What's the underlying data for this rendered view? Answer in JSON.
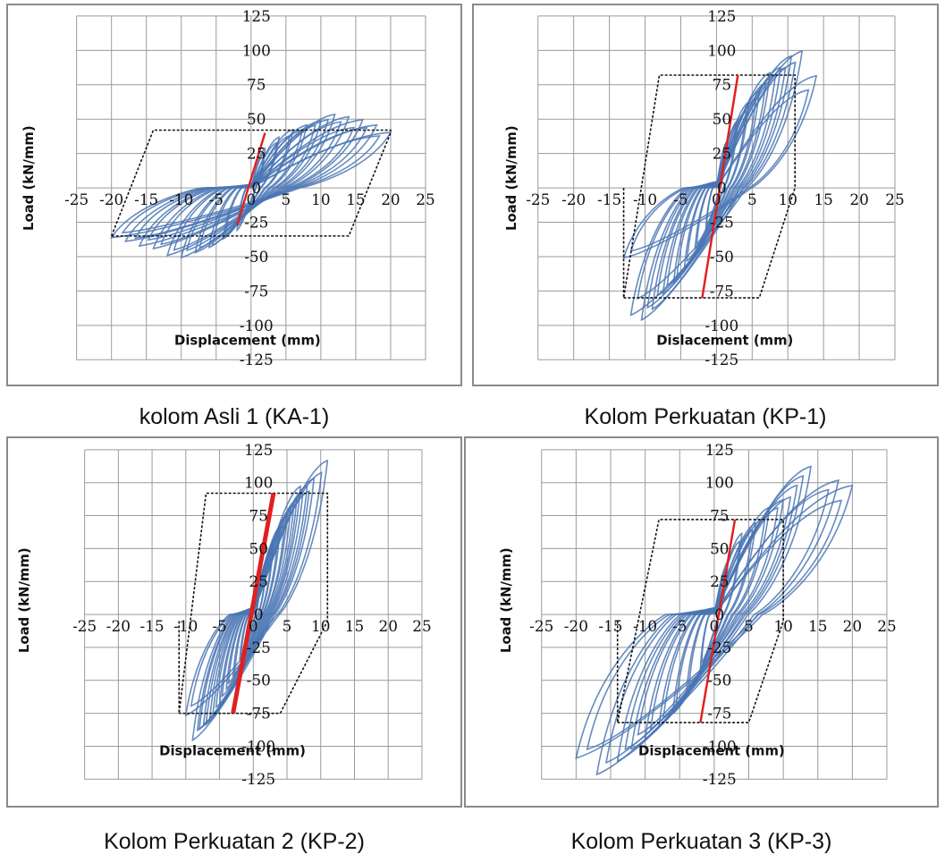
{
  "colors": {
    "hysteresis": "#4a76b4",
    "initial_stiffness": "#e02020",
    "bilinear": "#111111",
    "grid": "#9a9a9a"
  },
  "captions": [
    "kolom Asli 1 (KA-1)",
    "Kolom Perkuatan (KP-1)",
    "Kolom Perkuatan 2 (KP-2)",
    "Kolom Perkuatan 3 (KP-3)"
  ],
  "chart_data": [
    {
      "type": "line",
      "caption": "kolom Asli 1 (KA-1)",
      "xlabel": "Displacement (mm)",
      "ylabel": "Load (kN/mm)",
      "xticks": [
        "-25",
        "-20",
        "-15",
        "-10",
        "-5",
        "0",
        "5",
        "10",
        "15",
        "20",
        "25"
      ],
      "yticks": [
        "125",
        "100",
        "75",
        "50",
        "25",
        "0",
        "-25",
        "-50",
        "-75",
        "-100",
        "-125"
      ],
      "xlim": [
        -25,
        25
      ],
      "ylim": [
        -125,
        125
      ],
      "grid": true,
      "peaks": {
        "pos_disp": [
          2,
          4,
          6,
          8,
          10,
          12,
          14,
          16,
          18,
          20
        ],
        "pos_load": [
          28,
          36,
          42,
          46,
          50,
          55,
          52,
          49,
          46,
          40
        ],
        "neg_disp": [
          -2,
          -4,
          -6,
          -8,
          -10,
          -12,
          -14,
          -16,
          -18,
          -20
        ],
        "neg_load": [
          -30,
          -38,
          -44,
          -48,
          -50,
          -48,
          -45,
          -42,
          -40,
          -36
        ]
      },
      "stiffness_line": {
        "x": [
          -2,
          2
        ],
        "y": [
          -27,
          40
        ]
      },
      "bilinear": {
        "x": [
          -20,
          -14,
          20,
          20,
          14,
          -20,
          -20
        ],
        "y": [
          -35,
          42,
          42,
          40,
          -35,
          -35,
          -35
        ]
      }
    },
    {
      "type": "line",
      "caption": "Kolom Perkuatan (KP-1)",
      "xlabel": "Dislacement (mm)",
      "ylabel": "Load (kN/mm)",
      "xticks": [
        "-25",
        "-20",
        "-15",
        "-10",
        "-5",
        "0",
        "5",
        "10",
        "15",
        "20",
        "25"
      ],
      "yticks": [
        "125",
        "100",
        "75",
        "50",
        "25",
        "0",
        "-25",
        "-50",
        "-75",
        "-100",
        "-125"
      ],
      "xlim": [
        -25,
        25
      ],
      "ylim": [
        -125,
        125
      ],
      "grid": true,
      "peaks": {
        "pos_disp": [
          1.5,
          3,
          4.5,
          6,
          7.5,
          9,
          10.5,
          12,
          14
        ],
        "pos_load": [
          35,
          50,
          62,
          72,
          82,
          90,
          95,
          100,
          80
        ],
        "neg_disp": [
          -1.5,
          -3,
          -4.5,
          -6,
          -7.5,
          -9,
          -10.5,
          -12,
          -13
        ],
        "neg_load": [
          -30,
          -45,
          -58,
          -68,
          -78,
          -88,
          -95,
          -90,
          -50
        ]
      },
      "stiffness_line": {
        "x": [
          -2,
          3
        ],
        "y": [
          -80,
          82
        ]
      },
      "bilinear": {
        "x": [
          -13,
          -13,
          -8,
          11,
          11,
          6,
          -13
        ],
        "y": [
          0,
          -80,
          82,
          82,
          0,
          -80,
          -80
        ]
      }
    },
    {
      "type": "line",
      "caption": "Kolom Perkuatan 2 (KP-2)",
      "xlabel": "Displacement (mm)",
      "ylabel": "Load (kN/mm)",
      "xticks": [
        "-25",
        "-20",
        "-15",
        "-10",
        "-5",
        "0",
        "5",
        "10",
        "15",
        "20",
        "25"
      ],
      "yticks": [
        "125",
        "100",
        "75",
        "50",
        "25",
        "0",
        "-25",
        "-50",
        "-75",
        "-100",
        "-125"
      ],
      "xlim": [
        -25,
        25
      ],
      "ylim": [
        -125,
        125
      ],
      "grid": true,
      "peaks": {
        "pos_disp": [
          1,
          2,
          3,
          4,
          5,
          6,
          7,
          8,
          9,
          11
        ],
        "pos_load": [
          25,
          40,
          55,
          65,
          75,
          85,
          95,
          100,
          105,
          115
        ],
        "neg_disp": [
          -1,
          -2,
          -3,
          -4,
          -5,
          -6,
          -7,
          -8,
          -9,
          -10
        ],
        "neg_load": [
          -20,
          -35,
          -48,
          -58,
          -68,
          -78,
          -85,
          -88,
          -95,
          -75
        ]
      },
      "stiffness_line": {
        "x": [
          -3,
          3
        ],
        "y": [
          -75,
          92
        ]
      },
      "bilinear": {
        "x": [
          -11,
          -11,
          -7,
          11,
          11,
          4,
          -11
        ],
        "y": [
          -5,
          -75,
          92,
          92,
          -5,
          -75,
          -75
        ]
      }
    },
    {
      "type": "line",
      "caption": "Kolom Perkuatan 3 (KP-3)",
      "xlabel": "Displacement (mm)",
      "ylabel": "Load (kN/mm)",
      "xticks": [
        "-25",
        "-20",
        "-15",
        "-10",
        "-5",
        "0",
        "5",
        "10",
        "15",
        "20",
        "25"
      ],
      "yticks": [
        "125",
        "100",
        "75",
        "50",
        "25",
        "0",
        "-25",
        "-50",
        "-75",
        "-100",
        "-125"
      ],
      "xlim": [
        -25,
        25
      ],
      "ylim": [
        -125,
        125
      ],
      "grid": true,
      "peaks": {
        "pos_disp": [
          2,
          4,
          6,
          8,
          10,
          12,
          14,
          18,
          20
        ],
        "pos_load": [
          40,
          60,
          70,
          80,
          88,
          100,
          115,
          100,
          97
        ],
        "neg_disp": [
          -2,
          -4,
          -6,
          -8,
          -10,
          -12,
          -14,
          -17,
          -20
        ],
        "neg_load": [
          -40,
          -60,
          -75,
          -85,
          -95,
          -100,
          -110,
          -120,
          -110
        ]
      },
      "stiffness_line": {
        "x": [
          -2,
          3
        ],
        "y": [
          -82,
          72
        ]
      },
      "bilinear": {
        "x": [
          -14,
          -14,
          -8,
          10,
          10,
          5,
          -14
        ],
        "y": [
          -5,
          -82,
          72,
          72,
          -5,
          -82,
          -82
        ]
      }
    }
  ]
}
